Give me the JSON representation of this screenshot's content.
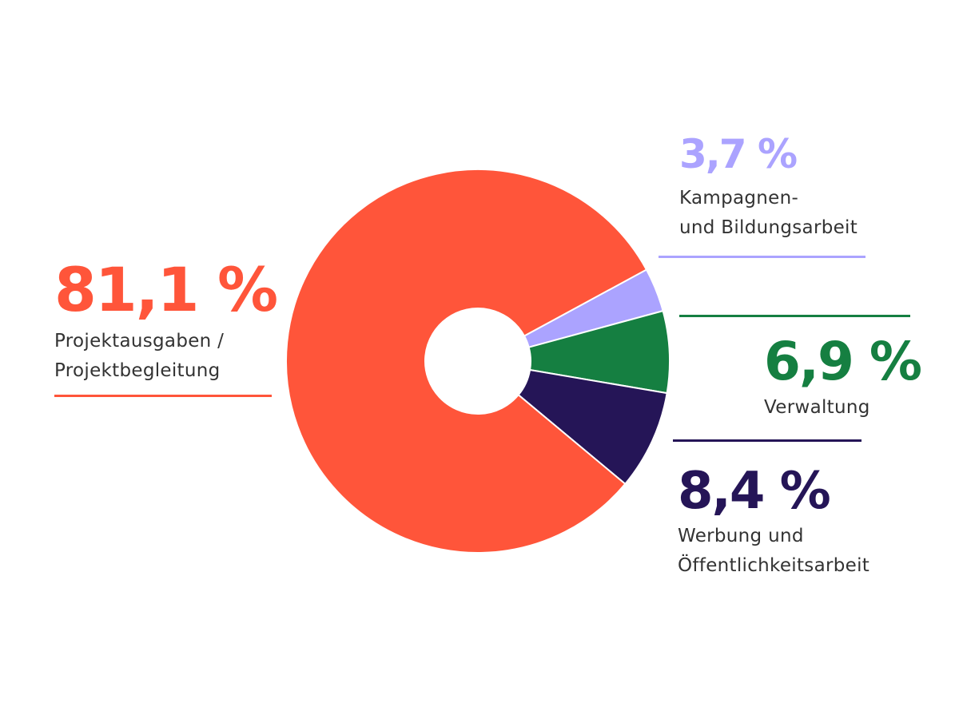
{
  "chart_data": {
    "type": "pie",
    "donut": true,
    "series": [
      {
        "value": 81.1,
        "value_label": "81,1 %",
        "label_lines": [
          "Projektausgaben /",
          "Projektbegleitung"
        ],
        "color": "#ff553a"
      },
      {
        "value": 3.7,
        "value_label": "3,7 %",
        "label_lines": [
          "Kampagnen-",
          "und Bildungsarbeit"
        ],
        "color": "#aba3ff"
      },
      {
        "value": 6.9,
        "value_label": "6,9 %",
        "label_lines": [
          "Verwaltung"
        ],
        "color": "#157f41"
      },
      {
        "value": 8.4,
        "value_label": "8,4 %",
        "label_lines": [
          "Werbung und",
          "Öffentlichkeitsarbeit"
        ],
        "color": "#251557"
      }
    ]
  }
}
